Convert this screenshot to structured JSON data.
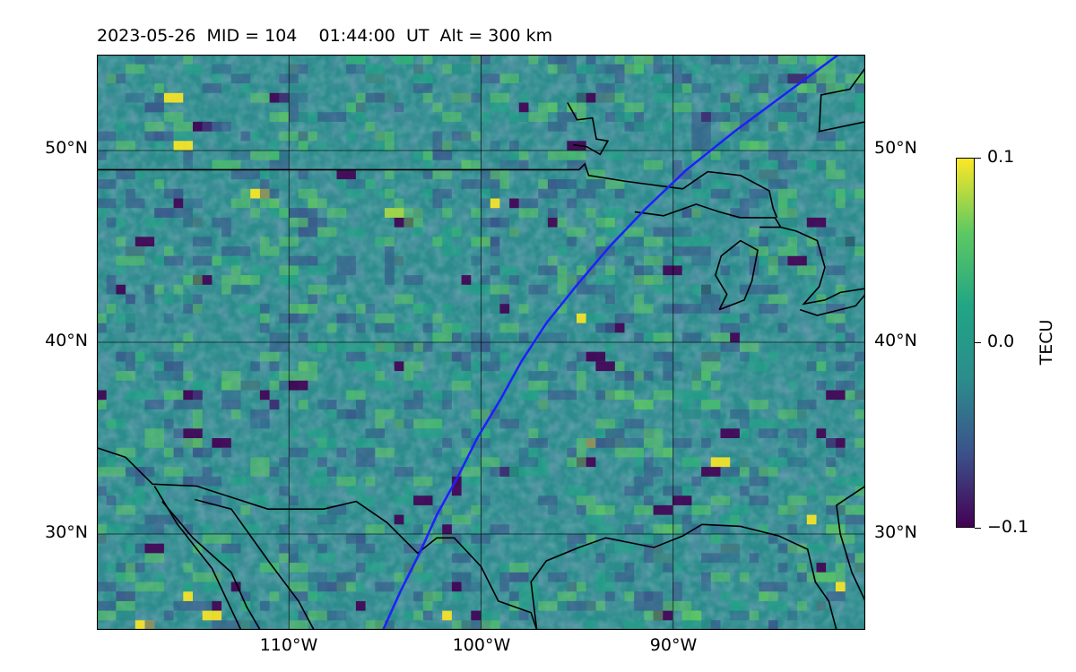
{
  "title": "2023-05-26  MID = 104    01:44:00  UT  Alt = 300 km",
  "map": {
    "lat_range": [
      25,
      55
    ],
    "lon_range": [
      -120,
      -80
    ],
    "colors": {
      "background_low": "#3b528b",
      "background_mid": "#2c8c8c",
      "background_high": "#5ec962",
      "peak": "#fde725",
      "trough": "#440154",
      "coastline": "#000000",
      "gridline": "#000000",
      "track": "#1f1fff"
    },
    "lat_ticks": [
      {
        "value": 50,
        "label": "50°N"
      },
      {
        "value": 40,
        "label": "40°N"
      },
      {
        "value": 30,
        "label": "30°N"
      }
    ],
    "lon_ticks": [
      {
        "value": -110,
        "label": "110°W"
      },
      {
        "value": -100,
        "label": "100°W"
      },
      {
        "value": -90,
        "label": "90°W"
      }
    ],
    "track_path": [
      [
        -105.1,
        25
      ],
      [
        -104.2,
        27
      ],
      [
        -103.2,
        29
      ],
      [
        -102.3,
        31
      ],
      [
        -101.2,
        33
      ],
      [
        -100.2,
        35
      ],
      [
        -99.0,
        37
      ],
      [
        -97.9,
        39
      ],
      [
        -96.6,
        41
      ],
      [
        -95.0,
        43
      ],
      [
        -93.3,
        45
      ],
      [
        -91.4,
        47
      ],
      [
        -89.3,
        49
      ],
      [
        -86.8,
        51
      ],
      [
        -84.1,
        53
      ],
      [
        -81.4,
        55
      ]
    ],
    "coastlines": [
      [
        [
          -120,
          49
        ],
        [
          -94.9,
          49
        ],
        [
          -94.6,
          49.3
        ],
        [
          -94.4,
          48.7
        ],
        [
          -92.5,
          48.4
        ],
        [
          -89.5,
          48.0
        ]
      ],
      [
        [
          -120,
          34.5
        ],
        [
          -118.5,
          34.0
        ],
        [
          -117.1,
          32.6
        ],
        [
          -114.8,
          32.5
        ],
        [
          -111.1,
          31.3
        ],
        [
          -108.2,
          31.3
        ],
        [
          -106.5,
          31.7
        ],
        [
          -104.9,
          30.6
        ],
        [
          -103.3,
          29.0
        ],
        [
          -102.3,
          29.8
        ],
        [
          -101.4,
          29.8
        ],
        [
          -100.0,
          28.3
        ],
        [
          -99.1,
          26.5
        ],
        [
          -97.4,
          25.9
        ],
        [
          -97.1,
          25.0
        ]
      ],
      [
        [
          -116.6,
          31.7
        ],
        [
          -115.0,
          29.8
        ],
        [
          -113.0,
          28.0
        ],
        [
          -112.2,
          26.2
        ],
        [
          -111.5,
          25.0
        ]
      ],
      [
        [
          -114.9,
          31.8
        ],
        [
          -113.0,
          31.3
        ],
        [
          -111.0,
          28.5
        ],
        [
          -109.5,
          26.5
        ],
        [
          -108.7,
          25.0
        ]
      ],
      [
        [
          -117.0,
          32.5
        ],
        [
          -115.8,
          30.5
        ],
        [
          -114.0,
          28.2
        ],
        [
          -112.5,
          25.0
        ]
      ],
      [
        [
          -97.1,
          25.0
        ],
        [
          -97.4,
          27.5
        ],
        [
          -96.6,
          28.6
        ],
        [
          -94.9,
          29.3
        ],
        [
          -93.5,
          29.8
        ],
        [
          -91.0,
          29.3
        ],
        [
          -89.5,
          29.9
        ],
        [
          -88.5,
          30.5
        ],
        [
          -86.5,
          30.4
        ],
        [
          -84.5,
          29.9
        ],
        [
          -83.0,
          29.2
        ],
        [
          -82.6,
          27.5
        ],
        [
          -81.9,
          26.5
        ],
        [
          -81.5,
          25.0
        ]
      ],
      [
        [
          -80.0,
          32.5
        ],
        [
          -81.5,
          31.5
        ],
        [
          -81.3,
          30.0
        ],
        [
          -80.7,
          28.0
        ],
        [
          -80.0,
          26.5
        ]
      ],
      [
        [
          -92.0,
          46.8
        ],
        [
          -90.5,
          46.6
        ],
        [
          -88.8,
          47.2
        ],
        [
          -87.6,
          46.8
        ],
        [
          -86.5,
          46.5
        ],
        [
          -84.7,
          46.5
        ],
        [
          -84.4,
          46.0
        ],
        [
          -85.5,
          46.0
        ]
      ],
      [
        [
          -89.5,
          48.0
        ],
        [
          -88.2,
          48.9
        ],
        [
          -86.5,
          48.7
        ],
        [
          -85.0,
          47.9
        ],
        [
          -84.8,
          47.0
        ],
        [
          -84.6,
          46.5
        ]
      ],
      [
        [
          -87.6,
          41.7
        ],
        [
          -87.2,
          42.5
        ],
        [
          -87.8,
          43.5
        ],
        [
          -87.5,
          44.5
        ],
        [
          -86.5,
          45.3
        ],
        [
          -85.6,
          44.8
        ],
        [
          -85.9,
          43.2
        ],
        [
          -86.3,
          42.2
        ],
        [
          -87.6,
          41.7
        ]
      ],
      [
        [
          -84.4,
          46.0
        ],
        [
          -83.6,
          45.8
        ],
        [
          -82.5,
          45.3
        ],
        [
          -82.1,
          43.9
        ],
        [
          -82.4,
          42.9
        ],
        [
          -83.2,
          42.0
        ],
        [
          -82.1,
          42.2
        ],
        [
          -81.3,
          42.6
        ],
        [
          -80,
          42.8
        ]
      ],
      [
        [
          -83.4,
          41.7
        ],
        [
          -82.5,
          41.4
        ],
        [
          -80.5,
          41.9
        ],
        [
          -80,
          42.5
        ]
      ],
      [
        [
          -79.5,
          55.0
        ],
        [
          -80.8,
          53.2
        ],
        [
          -82.3,
          52.9
        ],
        [
          -82.4,
          51.0
        ],
        [
          -80.0,
          51.5
        ]
      ],
      [
        [
          -95.5,
          52.5
        ],
        [
          -95.0,
          51.6
        ],
        [
          -94.2,
          51.7
        ],
        [
          -94.0,
          50.6
        ],
        [
          -93.4,
          50.5
        ],
        [
          -93.8,
          49.8
        ],
        [
          -94.5,
          50.2
        ],
        [
          -95.2,
          50.3
        ]
      ]
    ]
  },
  "colorbar": {
    "label": "TECU",
    "min_label": "−0.1",
    "mid_label": "0.0",
    "max_label": "0.1",
    "range": [
      -0.1,
      0.1
    ]
  }
}
